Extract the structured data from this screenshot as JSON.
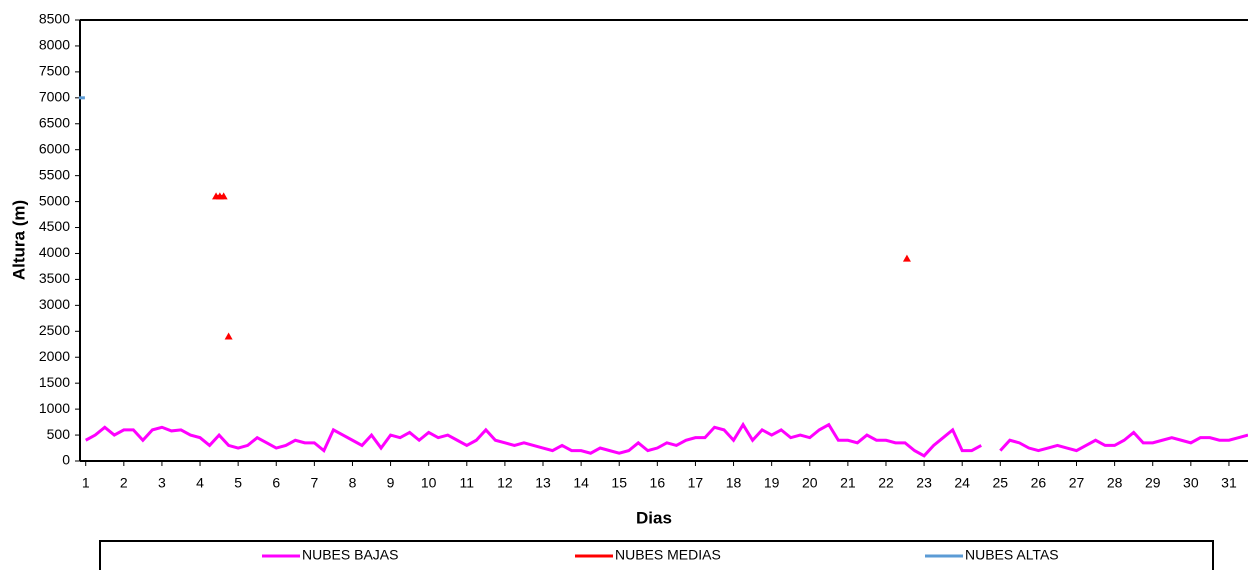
{
  "chart_data": {
    "type": "line",
    "xlabel": "Dias",
    "ylabel": "Altura (m)",
    "xlim": [
      0.85,
      31.5
    ],
    "xticks": [
      1,
      2,
      3,
      4,
      5,
      6,
      7,
      8,
      9,
      10,
      11,
      12,
      13,
      14,
      15,
      16,
      17,
      18,
      19,
      20,
      21,
      22,
      23,
      24,
      25,
      26,
      27,
      28,
      29,
      30,
      31
    ],
    "ylim": [
      0,
      8500
    ],
    "yticks": [
      0,
      500,
      1000,
      1500,
      2000,
      2500,
      3000,
      3500,
      4000,
      4500,
      5000,
      5500,
      6000,
      6500,
      7000,
      7500,
      8000,
      8500
    ],
    "legend": "bottom",
    "series": [
      {
        "name": "NUBES BAJAS",
        "color": "#ff00ff",
        "x": [
          1,
          1.25,
          1.5,
          1.75,
          2,
          2.25,
          2.5,
          2.75,
          3,
          3.25,
          3.5,
          3.75,
          4,
          4.25,
          4.5,
          4.75,
          5,
          5.25,
          5.5,
          5.75,
          6,
          6.25,
          6.5,
          6.75,
          7,
          7.25,
          7.5,
          7.75,
          8,
          8.25,
          8.5,
          8.75,
          9,
          9.25,
          9.5,
          9.75,
          10,
          10.25,
          10.5,
          10.75,
          11,
          11.25,
          11.5,
          11.75,
          12,
          12.25,
          12.5,
          12.75,
          13,
          13.25,
          13.5,
          13.75,
          14,
          14.25,
          14.5,
          14.75,
          15,
          15.25,
          15.5,
          15.75,
          16,
          16.25,
          16.5,
          16.75,
          17,
          17.25,
          17.5,
          17.75,
          18,
          18.25,
          18.5,
          18.75,
          19,
          19.25,
          19.5,
          19.75,
          20,
          20.25,
          20.5,
          20.75,
          21,
          21.25,
          21.5,
          21.75,
          22,
          22.25,
          22.5,
          22.75,
          23,
          23.25,
          23.5,
          23.75,
          24,
          24.25,
          24.5,
          24.75,
          25,
          25.25,
          25.5,
          25.75,
          26,
          26.25,
          26.5,
          26.75,
          27,
          27.25,
          27.5,
          27.75,
          28,
          28.25,
          28.5,
          28.75,
          29,
          29.25,
          29.5,
          29.75,
          30,
          30.25,
          30.5,
          30.75,
          31,
          31.25,
          31.5
        ],
        "values": [
          400,
          500,
          650,
          500,
          600,
          600,
          400,
          600,
          650,
          580,
          600,
          500,
          450,
          300,
          500,
          300,
          250,
          300,
          450,
          350,
          250,
          300,
          400,
          350,
          350,
          200,
          600,
          500,
          400,
          300,
          500,
          250,
          500,
          450,
          550,
          400,
          550,
          450,
          500,
          400,
          300,
          400,
          600,
          400,
          350,
          300,
          350,
          300,
          250,
          200,
          300,
          200,
          200,
          150,
          250,
          200,
          150,
          200,
          350,
          200,
          250,
          350,
          300,
          400,
          450,
          450,
          650,
          600,
          400,
          700,
          400,
          600,
          500,
          600,
          450,
          500,
          450,
          600,
          700,
          400,
          400,
          350,
          500,
          400,
          400,
          350,
          350,
          200,
          100,
          300,
          450,
          600,
          200,
          200,
          300,
          null,
          200,
          400,
          350,
          250,
          200,
          250,
          300,
          250,
          200,
          300,
          400,
          300,
          300,
          400,
          550,
          350,
          350,
          400,
          450,
          400,
          350,
          450,
          450,
          400,
          400,
          450,
          500
        ]
      },
      {
        "name": "NUBES MEDIAS",
        "color": "#ff0000",
        "x": [
          4.42,
          4.52,
          4.62,
          4.68,
          4.75,
          4.8,
          22.55
        ],
        "values": [
          5100,
          5100,
          5100,
          null,
          2400,
          null,
          3900
        ]
      },
      {
        "name": "NUBES ALTAS",
        "color": "#5b9bd5",
        "x": [
          0.9
        ],
        "values": [
          7000
        ]
      }
    ]
  }
}
